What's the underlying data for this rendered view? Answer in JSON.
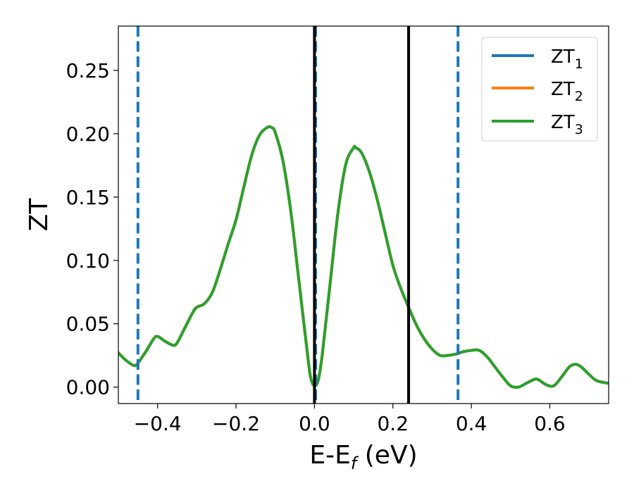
{
  "chart_data": {
    "type": "line",
    "xlabel": "E-E",
    "xlabel_sub": "f",
    "xlabel_unit": " (eV)",
    "ylabel": "ZT",
    "xlim": [
      -0.5,
      0.75
    ],
    "ylim": [
      -0.013,
      0.285
    ],
    "xticks": [
      -0.4,
      -0.2,
      0.0,
      0.2,
      0.4,
      0.6
    ],
    "xtick_labels": [
      "−0.4",
      "−0.2",
      "0.0",
      "0.2",
      "0.4",
      "0.6"
    ],
    "yticks": [
      0.0,
      0.05,
      0.1,
      0.15,
      0.2,
      0.25
    ],
    "ytick_labels": [
      "0.00",
      "0.05",
      "0.10",
      "0.15",
      "0.20",
      "0.25"
    ],
    "grid": false,
    "legend_position": "top-right",
    "series": [
      {
        "name": "ZT",
        "sub": "1",
        "color": "#1f77b4"
      },
      {
        "name": "ZT",
        "sub": "2",
        "color": "#ff7f0e"
      },
      {
        "name": "ZT",
        "sub": "3",
        "color": "#2ca02c"
      }
    ],
    "curve": {
      "x": [
        -0.5,
        -0.48,
        -0.46,
        -0.45,
        -0.43,
        -0.41,
        -0.4,
        -0.38,
        -0.36,
        -0.35,
        -0.33,
        -0.31,
        -0.3,
        -0.28,
        -0.26,
        -0.24,
        -0.22,
        -0.2,
        -0.18,
        -0.16,
        -0.14,
        -0.12,
        -0.11,
        -0.1,
        -0.08,
        -0.06,
        -0.04,
        -0.02,
        -0.01,
        0.0,
        0.01,
        0.02,
        0.04,
        0.06,
        0.08,
        0.1,
        0.105,
        0.12,
        0.14,
        0.16,
        0.18,
        0.2,
        0.22,
        0.24,
        0.26,
        0.28,
        0.3,
        0.32,
        0.34,
        0.36,
        0.38,
        0.4,
        0.42,
        0.44,
        0.46,
        0.48,
        0.5,
        0.52,
        0.54,
        0.56,
        0.57,
        0.59,
        0.61,
        0.63,
        0.65,
        0.665,
        0.68,
        0.7,
        0.72,
        0.75
      ],
      "y": [
        0.027,
        0.021,
        0.017,
        0.019,
        0.028,
        0.038,
        0.04,
        0.036,
        0.033,
        0.035,
        0.047,
        0.059,
        0.063,
        0.066,
        0.075,
        0.093,
        0.113,
        0.132,
        0.158,
        0.183,
        0.199,
        0.205,
        0.205,
        0.201,
        0.178,
        0.138,
        0.085,
        0.032,
        0.008,
        0.001,
        0.006,
        0.026,
        0.082,
        0.138,
        0.176,
        0.189,
        0.189,
        0.185,
        0.17,
        0.148,
        0.122,
        0.096,
        0.078,
        0.063,
        0.049,
        0.038,
        0.03,
        0.025,
        0.025,
        0.026,
        0.028,
        0.029,
        0.029,
        0.024,
        0.016,
        0.008,
        0.001,
        0.0,
        0.003,
        0.006,
        0.006,
        0.002,
        0.001,
        0.008,
        0.016,
        0.018,
        0.016,
        0.01,
        0.005,
        0.003
      ]
    },
    "vlines": [
      {
        "x": -0.45,
        "style": "dashed",
        "color": "#1f77b4"
      },
      {
        "x": 0.003,
        "style": "dashed",
        "color": "#1f77b4"
      },
      {
        "x": 0.366,
        "style": "dashed",
        "color": "#1f77b4"
      },
      {
        "x": 0.0,
        "style": "solid",
        "color": "#000000"
      },
      {
        "x": 0.24,
        "style": "solid",
        "color": "#000000"
      }
    ]
  }
}
